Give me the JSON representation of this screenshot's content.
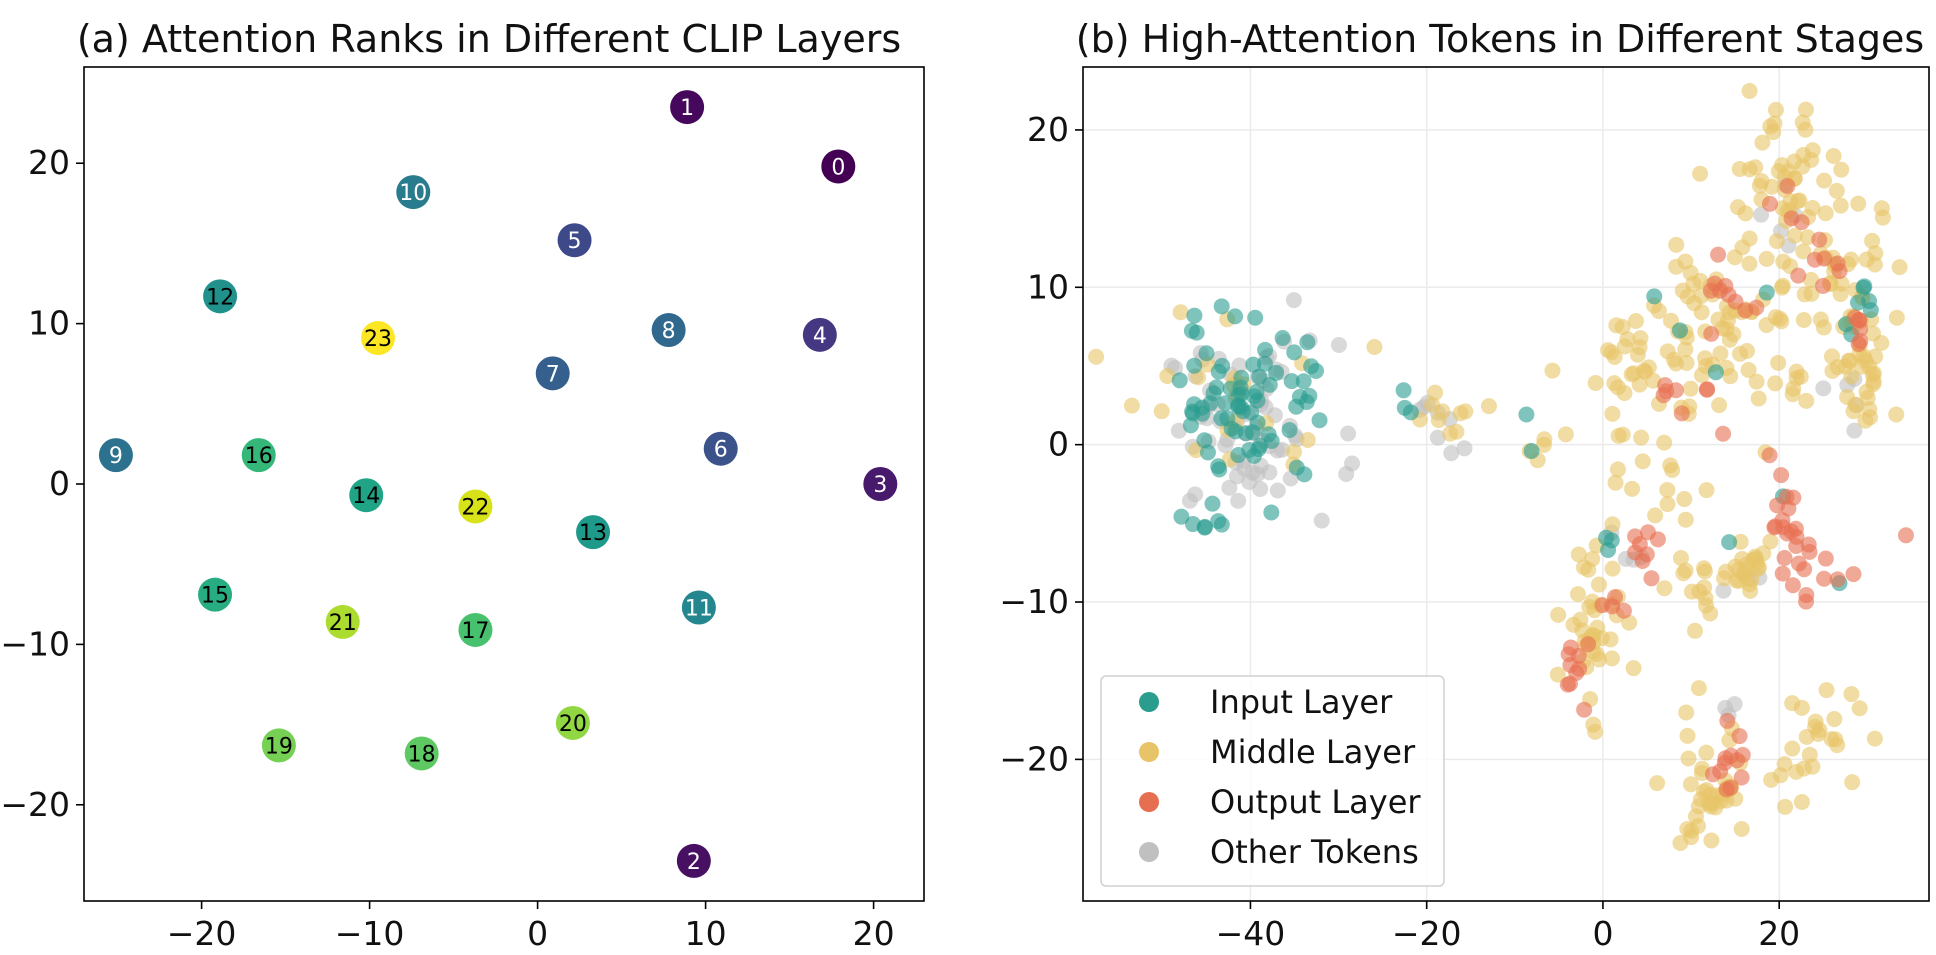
{
  "chart_data": [
    {
      "type": "scatter",
      "title": "(a) Attention Ranks in Different CLIP Layers",
      "xlabel": "",
      "ylabel": "",
      "xlim": [
        -27,
        23
      ],
      "ylim": [
        -26,
        26
      ],
      "xticks": [
        "−20",
        "−10",
        "0",
        "10",
        "20"
      ],
      "yticks": [
        "−20",
        "−10",
        "0",
        "10",
        "20"
      ],
      "grid": false,
      "colormap": "viridis",
      "points": [
        {
          "label": "0",
          "x": 17.9,
          "y": 19.8,
          "color": "#440154"
        },
        {
          "label": "1",
          "x": 8.9,
          "y": 23.5,
          "color": "#46085c"
        },
        {
          "label": "2",
          "x": 9.3,
          "y": -23.5,
          "color": "#471063"
        },
        {
          "label": "3",
          "x": 20.4,
          "y": 0.0,
          "color": "#481a6c"
        },
        {
          "label": "4",
          "x": 16.8,
          "y": 9.3,
          "color": "#453781"
        },
        {
          "label": "5",
          "x": 2.2,
          "y": 15.2,
          "color": "#3e4989"
        },
        {
          "label": "6",
          "x": 10.9,
          "y": 2.2,
          "color": "#3b528b"
        },
        {
          "label": "7",
          "x": 0.9,
          "y": 6.9,
          "color": "#355f8d"
        },
        {
          "label": "8",
          "x": 7.8,
          "y": 9.6,
          "color": "#31688e"
        },
        {
          "label": "9",
          "x": -25.1,
          "y": 1.8,
          "color": "#2c728e"
        },
        {
          "label": "10",
          "x": -7.4,
          "y": 18.2,
          "color": "#297b8e"
        },
        {
          "label": "11",
          "x": 9.6,
          "y": -7.7,
          "color": "#24868e"
        },
        {
          "label": "12",
          "x": -18.9,
          "y": 11.7,
          "color": "#21918c"
        },
        {
          "label": "13",
          "x": 3.3,
          "y": -3.0,
          "color": "#1f9a8a"
        },
        {
          "label": "14",
          "x": -10.2,
          "y": -0.7,
          "color": "#20a486"
        },
        {
          "label": "15",
          "x": -19.2,
          "y": -6.9,
          "color": "#27ad81"
        },
        {
          "label": "16",
          "x": -16.6,
          "y": 1.8,
          "color": "#35b779"
        },
        {
          "label": "17",
          "x": -3.7,
          "y": -9.1,
          "color": "#47c16e"
        },
        {
          "label": "18",
          "x": -6.9,
          "y": -16.8,
          "color": "#5ec962"
        },
        {
          "label": "19",
          "x": -15.4,
          "y": -16.3,
          "color": "#75d054"
        },
        {
          "label": "20",
          "x": 2.1,
          "y": -14.9,
          "color": "#90d743"
        },
        {
          "label": "21",
          "x": -11.6,
          "y": -8.6,
          "color": "#addc30"
        },
        {
          "label": "22",
          "x": -3.7,
          "y": -1.4,
          "color": "#d8e219"
        },
        {
          "label": "23",
          "x": -9.5,
          "y": 9.1,
          "color": "#fde725"
        }
      ]
    },
    {
      "type": "scatter",
      "title": "(b) High-Attention Tokens in Different Stages",
      "xlabel": "",
      "ylabel": "",
      "xlim": [
        -59,
        37
      ],
      "ylim": [
        -29,
        24
      ],
      "xticks": [
        "−40",
        "−20",
        "0",
        "20"
      ],
      "yticks": [
        "−20",
        "−10",
        "0",
        "10",
        "20"
      ],
      "grid": true,
      "legend_position": "bottom-left",
      "series": [
        {
          "name": "Other Tokens",
          "color": "#c0c0c0",
          "clusters": [
            {
              "cx": -40,
              "cy": 1,
              "rx": 9,
              "ry": 5,
              "n": 70
            },
            {
              "cx": -19,
              "cy": 1.5,
              "rx": 3,
              "ry": 2,
              "n": 8
            },
            {
              "cx": 3,
              "cy": -7,
              "rx": 2,
              "ry": 2,
              "n": 4
            },
            {
              "cx": 21,
              "cy": 13,
              "rx": 3,
              "ry": 3,
              "n": 5
            },
            {
              "cx": 27,
              "cy": 3,
              "rx": 3,
              "ry": 2,
              "n": 5
            },
            {
              "cx": 16,
              "cy": -9,
              "rx": 2,
              "ry": 1,
              "n": 4
            },
            {
              "cx": 14,
              "cy": -17,
              "rx": 2,
              "ry": 1,
              "n": 3
            }
          ]
        },
        {
          "name": "Middle Layer",
          "color": "#e8c468",
          "clusters": [
            {
              "cx": -42,
              "cy": 3,
              "rx": 11,
              "ry": 5,
              "n": 22
            },
            {
              "cx": -17,
              "cy": 2,
              "rx": 4,
              "ry": 1.5,
              "n": 10
            },
            {
              "cx": -6,
              "cy": 0,
              "rx": 3,
              "ry": 1,
              "n": 5
            },
            {
              "cx": 5,
              "cy": 5,
              "rx": 6,
              "ry": 4,
              "n": 35
            },
            {
              "cx": 13,
              "cy": 9,
              "rx": 6,
              "ry": 6,
              "n": 50
            },
            {
              "cx": 23,
              "cy": 10,
              "rx": 8,
              "ry": 8,
              "n": 80
            },
            {
              "cx": 20,
              "cy": 18,
              "rx": 5,
              "ry": 3,
              "n": 30
            },
            {
              "cx": 29,
              "cy": 5,
              "rx": 3,
              "ry": 5,
              "n": 30
            },
            {
              "cx": -1,
              "cy": -11,
              "rx": 3,
              "ry": 5,
              "n": 40
            },
            {
              "cx": 10,
              "cy": -9,
              "rx": 4,
              "ry": 2,
              "n": 15
            },
            {
              "cx": 16,
              "cy": -8,
              "rx": 3,
              "ry": 2,
              "n": 20
            },
            {
              "cx": 12,
              "cy": -22,
              "rx": 5,
              "ry": 4,
              "n": 40
            },
            {
              "cx": 24,
              "cy": -19,
              "rx": 5,
              "ry": 3,
              "n": 25
            },
            {
              "cx": 6,
              "cy": -3,
              "rx": 4,
              "ry": 3,
              "n": 15
            }
          ]
        },
        {
          "name": "Input Layer",
          "color": "#2a9d8f",
          "clusters": [
            {
              "cx": -40,
              "cy": 3,
              "rx": 8,
              "ry": 5,
              "n": 75
            },
            {
              "cx": -44,
              "cy": -5,
              "rx": 3,
              "ry": 2,
              "n": 6
            },
            {
              "cx": -22,
              "cy": 2.5,
              "rx": 1.5,
              "ry": 0.8,
              "n": 3
            },
            {
              "cx": -7,
              "cy": 1,
              "rx": 2,
              "ry": 1,
              "n": 2
            },
            {
              "cx": 7,
              "cy": 9,
              "rx": 1,
              "ry": 1,
              "n": 1
            },
            {
              "cx": 9,
              "cy": 6.5,
              "rx": 1,
              "ry": 1,
              "n": 1
            },
            {
              "cx": 13,
              "cy": 4.5,
              "rx": 1,
              "ry": 1,
              "n": 1
            },
            {
              "cx": 18,
              "cy": 10,
              "rx": 1,
              "ry": 1,
              "n": 1
            },
            {
              "cx": 29,
              "cy": 9,
              "rx": 2,
              "ry": 2,
              "n": 5
            },
            {
              "cx": 27,
              "cy": 6.5,
              "rx": 2,
              "ry": 1,
              "n": 2
            },
            {
              "cx": 0,
              "cy": -7,
              "rx": 1.5,
              "ry": 1,
              "n": 3
            },
            {
              "cx": 14,
              "cy": -6.5,
              "rx": 1,
              "ry": 1,
              "n": 1
            },
            {
              "cx": 26,
              "cy": -9,
              "rx": 1,
              "ry": 1,
              "n": 1
            },
            {
              "cx": 20,
              "cy": -2,
              "rx": 1,
              "ry": 1,
              "n": 1
            }
          ]
        },
        {
          "name": "Output Layer",
          "color": "#e76f51",
          "clusters": [
            {
              "cx": 25,
              "cy": 11,
              "rx": 3,
              "ry": 2,
              "n": 8
            },
            {
              "cx": 29,
              "cy": 7.5,
              "rx": 2,
              "ry": 2,
              "n": 6
            },
            {
              "cx": 14,
              "cy": 9,
              "rx": 3,
              "ry": 2,
              "n": 10
            },
            {
              "cx": 21,
              "cy": 16,
              "rx": 2,
              "ry": 2,
              "n": 3
            },
            {
              "cx": 9,
              "cy": 2,
              "rx": 4,
              "ry": 2,
              "n": 8
            },
            {
              "cx": 20,
              "cy": -5,
              "rx": 2,
              "ry": 3,
              "n": 16
            },
            {
              "cx": 24,
              "cy": -8,
              "rx": 4,
              "ry": 1.5,
              "n": 12
            },
            {
              "cx": 4,
              "cy": -7,
              "rx": 2,
              "ry": 1.5,
              "n": 8
            },
            {
              "cx": 1,
              "cy": -10,
              "rx": 1.5,
              "ry": 1,
              "n": 4
            },
            {
              "cx": -3,
              "cy": -14,
              "rx": 1.5,
              "ry": 2,
              "n": 10
            },
            {
              "cx": 14,
              "cy": -21,
              "rx": 2,
              "ry": 3,
              "n": 12
            },
            {
              "cx": 34,
              "cy": -6,
              "rx": 0.5,
              "ry": 0.5,
              "n": 1
            }
          ]
        }
      ],
      "legend": [
        {
          "name": "Input Layer",
          "color": "#2a9d8f"
        },
        {
          "name": "Middle Layer",
          "color": "#e8c468"
        },
        {
          "name": "Output Layer",
          "color": "#e76f51"
        },
        {
          "name": "Other Tokens",
          "color": "#c0c0c0"
        }
      ]
    }
  ]
}
